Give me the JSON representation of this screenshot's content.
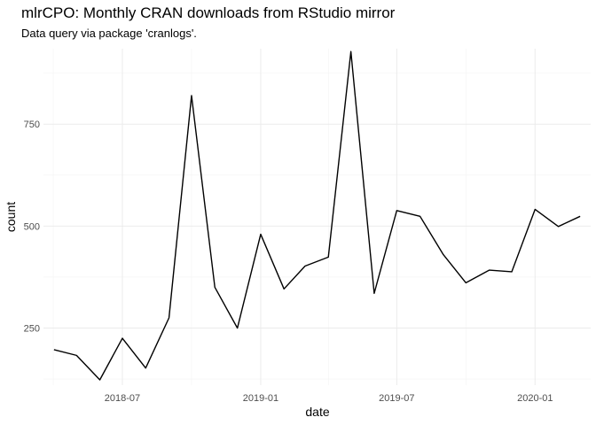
{
  "chart_data": {
    "type": "line",
    "title": "mlrCPO: Monthly CRAN downloads from RStudio mirror",
    "subtitle": "Data query via package 'cranlogs'.",
    "xlabel": "date",
    "ylabel": "count",
    "x_tick_labels": [
      "2018-07",
      "2019-01",
      "2019-07",
      "2020-01"
    ],
    "y_tick_labels": [
      "250",
      "500",
      "750"
    ],
    "y_ticks": [
      250,
      500,
      750
    ],
    "ylim": [
      110,
      935
    ],
    "xlim": [
      "2018-03-18",
      "2020-03-15"
    ],
    "grid": true,
    "series": [
      {
        "x": [
          "2018-04-01",
          "2018-05-01",
          "2018-06-01",
          "2018-07-01",
          "2018-08-01",
          "2018-09-01",
          "2018-10-01",
          "2018-11-01",
          "2018-12-01",
          "2019-01-01",
          "2019-02-01",
          "2019-03-01",
          "2019-04-01",
          "2019-05-01",
          "2019-06-01",
          "2019-07-01",
          "2019-08-01",
          "2019-09-01",
          "2019-10-01",
          "2019-11-01",
          "2019-12-01",
          "2020-01-01",
          "2020-02-01",
          "2020-03-01"
        ],
        "values": [
          197,
          183,
          123,
          225,
          152,
          275,
          820,
          350,
          250,
          480,
          346,
          402,
          424,
          928,
          335,
          538,
          524,
          430,
          361,
          392,
          388,
          541,
          499,
          524
        ]
      }
    ]
  }
}
